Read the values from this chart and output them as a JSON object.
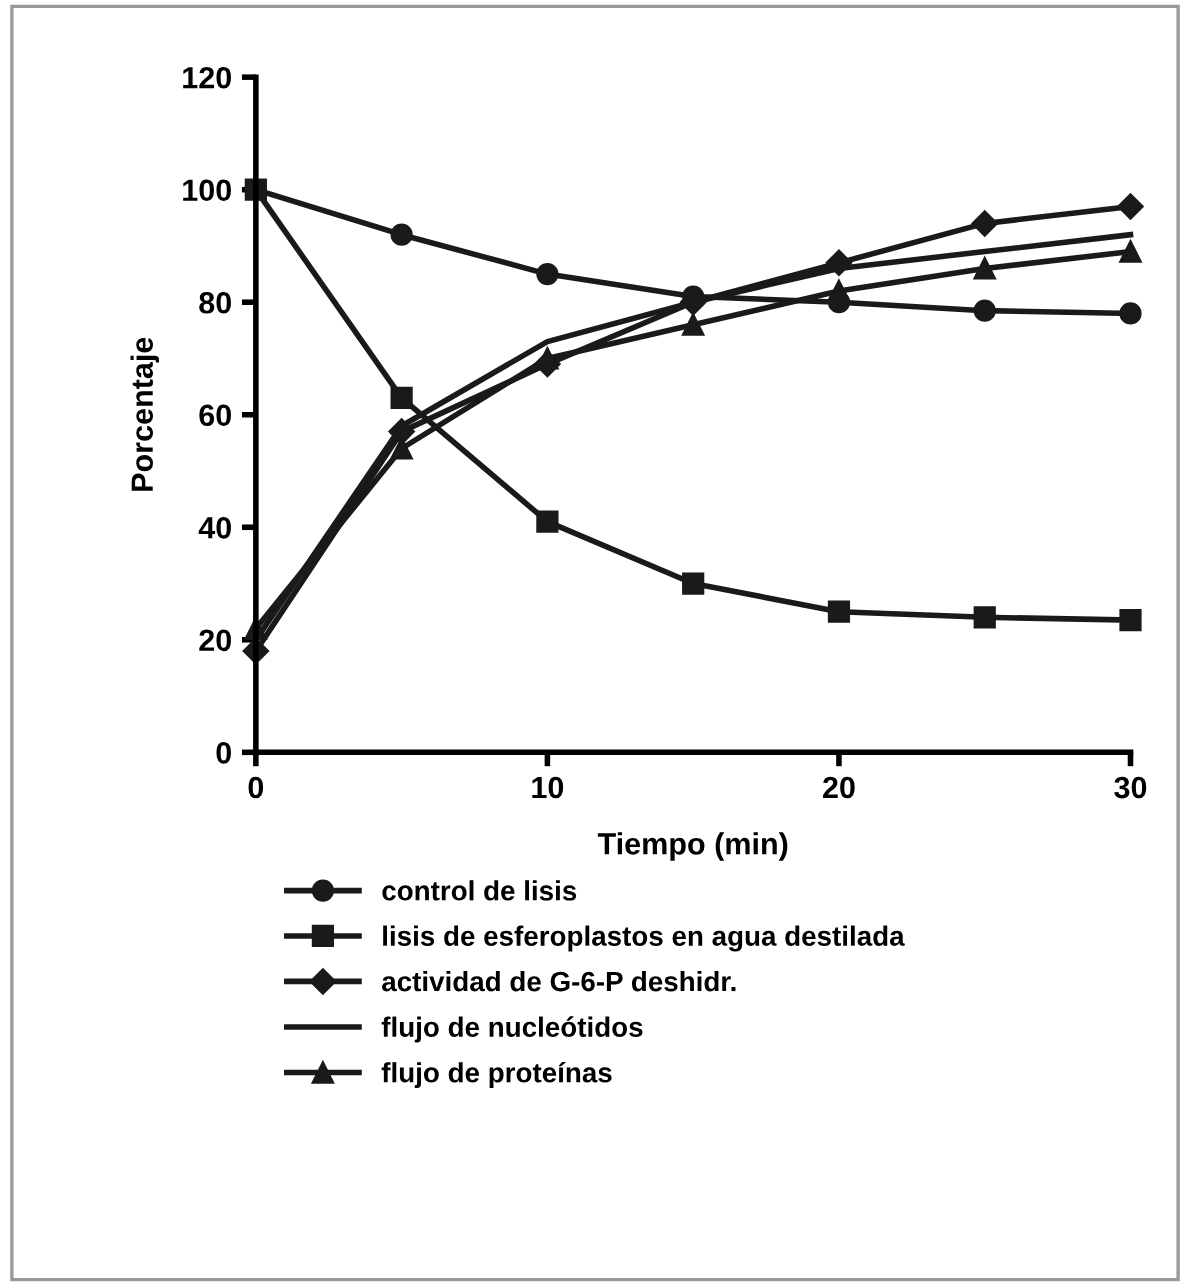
{
  "chart_data": {
    "type": "line",
    "xlabel": "Tiempo (min)",
    "ylabel": "Porcentaje",
    "x": [
      0,
      5,
      10,
      15,
      20,
      25,
      30
    ],
    "xlim": [
      0,
      30
    ],
    "xticks": [
      0,
      10,
      20,
      30
    ],
    "ylim": [
      0,
      120
    ],
    "yticks": [
      0,
      20,
      40,
      60,
      80,
      100,
      120
    ],
    "grid": false,
    "legend": "bottom",
    "line_style": "solid",
    "series": [
      {
        "name": "control de lisis",
        "color": "#1a1a1a",
        "marker": "circle",
        "values": [
          100,
          92,
          85,
          81,
          80,
          78.5,
          78
        ]
      },
      {
        "name": "lisis de esferoplastos en agua destilada",
        "color": "#1a1a1a",
        "marker": "square",
        "values": [
          100,
          63,
          41,
          30,
          25,
          24,
          23.5
        ]
      },
      {
        "name": "actividad de G-6-P deshidr.",
        "color": "#1a1a1a",
        "marker": "diamond",
        "values": [
          18,
          57,
          69,
          80,
          87,
          94,
          97
        ]
      },
      {
        "name": "flujo de nucleótidos",
        "color": "#1a1a1a",
        "marker": "none",
        "values": [
          20,
          58,
          73,
          80,
          86,
          89,
          92
        ]
      },
      {
        "name": "flujo de proteínas",
        "color": "#1a1a1a",
        "marker": "triangle",
        "values": [
          22,
          54,
          70,
          76,
          82,
          86,
          89
        ]
      }
    ]
  }
}
